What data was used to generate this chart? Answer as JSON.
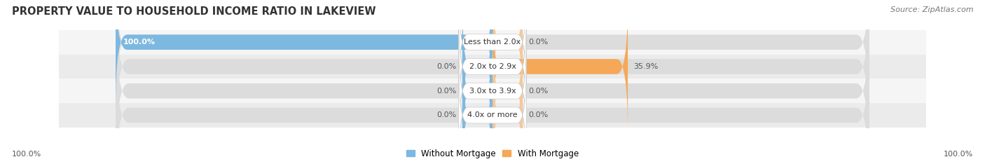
{
  "title": "PROPERTY VALUE TO HOUSEHOLD INCOME RATIO IN LAKEVIEW",
  "source": "Source: ZipAtlas.com",
  "categories": [
    "Less than 2.0x",
    "2.0x to 2.9x",
    "3.0x to 3.9x",
    "4.0x or more"
  ],
  "without_mortgage": [
    100.0,
    0.0,
    0.0,
    0.0
  ],
  "with_mortgage": [
    0.0,
    35.9,
    0.0,
    0.0
  ],
  "left_labels": [
    "100.0%",
    "0.0%",
    "0.0%",
    "0.0%"
  ],
  "right_labels": [
    "0.0%",
    "35.9%",
    "0.0%",
    "0.0%"
  ],
  "color_without": "#7db8e0",
  "color_with": "#f5a857",
  "color_with_light": "#f5c898",
  "color_bg_bar": "#e8e8e8",
  "color_bg_alt": "#f0f0f0",
  "color_title": "#333333",
  "axis_label_left": "100.0%",
  "axis_label_right": "100.0%",
  "legend_without": "Without Mortgage",
  "legend_with": "With Mortgage",
  "title_fontsize": 10.5,
  "label_fontsize": 8,
  "category_fontsize": 8,
  "source_fontsize": 8,
  "stub_size": 8.0,
  "max_val": 100.0
}
